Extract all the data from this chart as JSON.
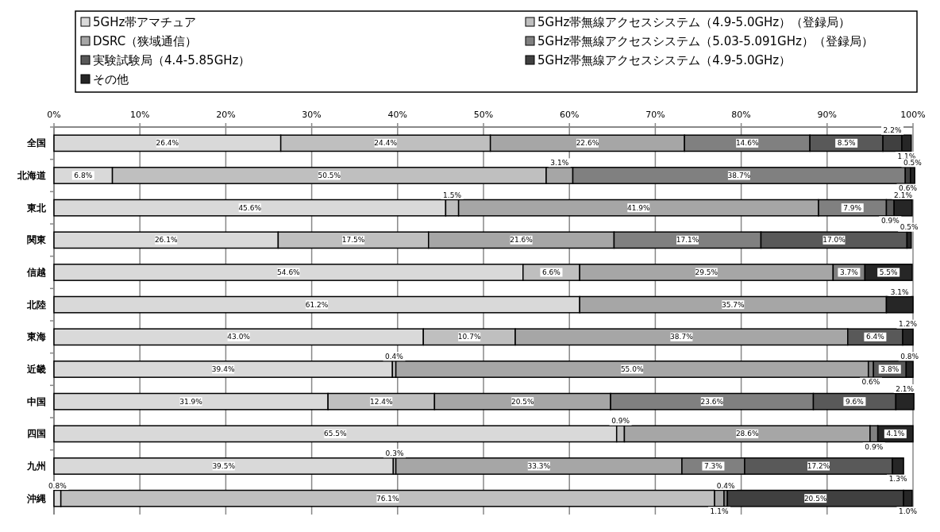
{
  "chart_data": {
    "type": "bar",
    "orientation": "horizontal",
    "stacked": true,
    "legend": "top",
    "grid": "x",
    "categories": [
      "全国",
      "北海道",
      "東北",
      "関東",
      "信越",
      "北陸",
      "東海",
      "近畿",
      "中国",
      "四国",
      "九州",
      "沖縄"
    ],
    "xlim": [
      0,
      100
    ],
    "xticks": [
      {
        "value": 0,
        "label": "0%"
      },
      {
        "value": 10,
        "label": "10%"
      },
      {
        "value": 20,
        "label": "20%"
      },
      {
        "value": 30,
        "label": "30%"
      },
      {
        "value": 40,
        "label": "40%"
      },
      {
        "value": 50,
        "label": "50%"
      },
      {
        "value": 60,
        "label": "60%"
      },
      {
        "value": 70,
        "label": "70%"
      },
      {
        "value": 80,
        "label": "80%"
      },
      {
        "value": 90,
        "label": "90%"
      },
      {
        "value": 100,
        "label": "100%"
      }
    ],
    "series": [
      {
        "name": "5GHz帯アマチュア",
        "color": "#d9d9d9",
        "values": [
          26.4,
          6.8,
          45.6,
          26.1,
          54.6,
          61.2,
          43.0,
          39.4,
          31.9,
          65.5,
          39.5,
          0.8
        ],
        "value_labels": [
          "26.4%",
          "6.8%",
          "45.6%",
          "26.1%",
          "54.6%",
          "61.2%",
          "43.0%",
          "39.4%",
          "31.9%",
          "65.5%",
          "39.5%",
          "0.8%"
        ]
      },
      {
        "name": "5GHz帯無線アクセスシステム（4.9-5.0GHz）（登録局）",
        "color": "#bfbfbf",
        "values": [
          24.4,
          50.5,
          1.5,
          17.5,
          6.6,
          null,
          10.7,
          0.4,
          12.4,
          0.9,
          0.3,
          76.1
        ],
        "value_labels": [
          "24.4%",
          "50.5%",
          "1.5%",
          "17.5%",
          "6.6%",
          null,
          "10.7%",
          "0.4%",
          "12.4%",
          "0.9%",
          "0.3%",
          "76.1%"
        ]
      },
      {
        "name": "DSRC（狭域通信）",
        "color": "#a6a6a6",
        "values": [
          22.6,
          3.1,
          41.9,
          21.6,
          29.5,
          35.7,
          38.7,
          55.0,
          20.5,
          28.6,
          33.3,
          1.1
        ],
        "value_labels": [
          "22.6%",
          "3.1%",
          "41.9%",
          "21.6%",
          "29.5%",
          "35.7%",
          "38.7%",
          "55.0%",
          "20.5%",
          "28.6%",
          "33.3%",
          "1.1%"
        ]
      },
      {
        "name": "5GHz帯無線アクセスシステム（5.03-5.091GHz）（登録局）",
        "color": "#808080",
        "values": [
          14.6,
          38.7,
          7.9,
          17.1,
          3.7,
          null,
          null,
          0.6,
          23.6,
          0.9,
          7.3,
          0.4
        ],
        "value_labels": [
          "14.6%",
          "38.7%",
          "7.9%",
          "17.1%",
          "3.7%",
          null,
          null,
          "0.6%",
          "23.6%",
          "0.9%",
          "7.3%",
          "0.4%"
        ]
      },
      {
        "name": "実験試験局（4.4-5.85GHz）",
        "color": "#595959",
        "values": [
          8.5,
          null,
          0.9,
          17.0,
          null,
          null,
          6.4,
          3.8,
          9.6,
          null,
          17.2,
          null
        ],
        "value_labels": [
          "8.5%",
          null,
          "0.9%",
          "17.0%",
          null,
          null,
          "6.4%",
          "3.8%",
          "9.6%",
          null,
          "17.2%",
          null
        ]
      },
      {
        "name": "5GHz帯無線アクセスシステム（4.9-5.0GHz）",
        "color": "#404040",
        "values": [
          2.2,
          0.6,
          null,
          null,
          null,
          null,
          null,
          null,
          null,
          null,
          null,
          20.5
        ],
        "value_labels": [
          "2.2%",
          "0.6%",
          null,
          null,
          null,
          null,
          null,
          null,
          null,
          null,
          null,
          "20.5%"
        ]
      },
      {
        "name": "その他",
        "color": "#262626",
        "values": [
          1.1,
          0.5,
          2.1,
          0.5,
          5.5,
          3.1,
          1.2,
          0.8,
          2.1,
          4.1,
          1.3,
          1.0
        ],
        "value_labels": [
          "1.1%",
          "0.5%",
          "2.1%",
          "0.5%",
          "5.5%",
          "3.1%",
          "1.2%",
          "0.8%",
          "2.1%",
          "4.1%",
          "1.3%",
          "1.0%"
        ]
      }
    ]
  }
}
